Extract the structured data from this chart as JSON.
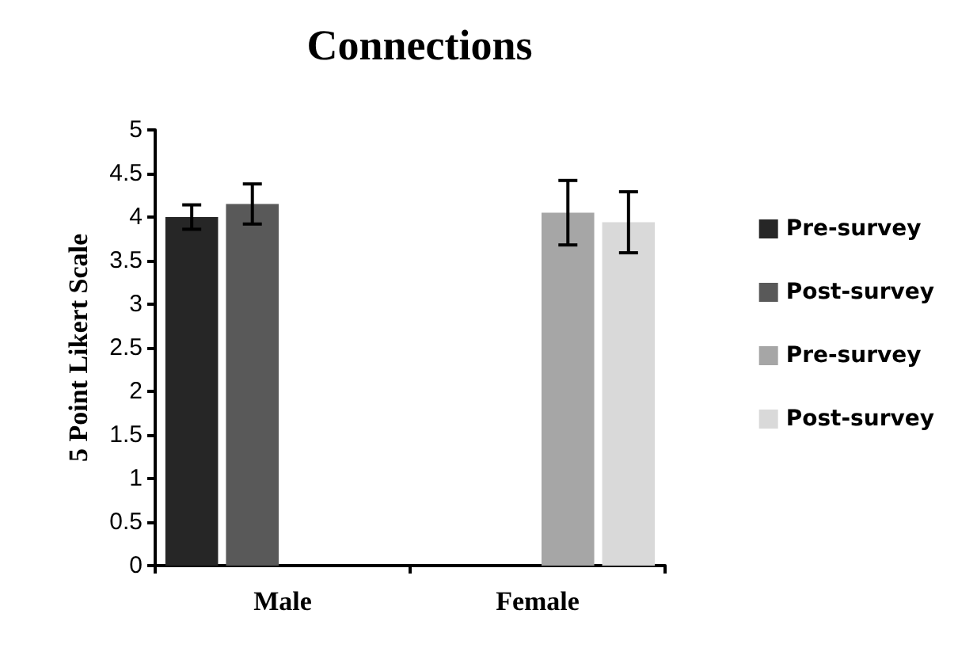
{
  "chart_data": {
    "type": "bar",
    "title": "Connections",
    "ylabel": "5 Point Likert Scale",
    "categories": [
      "Male",
      "Female"
    ],
    "series": [
      {
        "name": "Pre-survey",
        "color": "#262626",
        "values": [
          4.0,
          null
        ],
        "errors": [
          0.14,
          null
        ]
      },
      {
        "name": "Post-survey",
        "color": "#595959",
        "values": [
          4.15,
          null
        ],
        "errors": [
          0.23,
          null
        ]
      },
      {
        "name": "Pre-survey",
        "color": "#a6a6a6",
        "values": [
          null,
          4.05
        ],
        "errors": [
          null,
          0.37
        ]
      },
      {
        "name": "Post-survey",
        "color": "#d9d9d9",
        "values": [
          null,
          3.94
        ],
        "errors": [
          null,
          0.35
        ]
      }
    ],
    "ylim": [
      0,
      5
    ],
    "yticks": [
      0,
      0.5,
      1,
      1.5,
      2,
      2.5,
      3,
      3.5,
      4,
      4.5,
      5
    ],
    "grid": false,
    "legend": "right"
  }
}
